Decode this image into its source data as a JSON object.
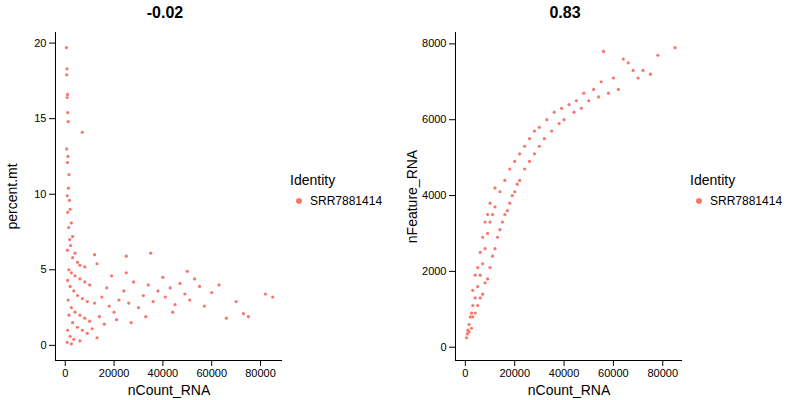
{
  "chart_data": [
    {
      "type": "scatter",
      "title": "-0.02",
      "x_label": "nCount_RNA",
      "y_label": "percent.mt",
      "legend": "right",
      "legend_title": "Identity",
      "xlim": [
        -4000,
        89000
      ],
      "xticks": [
        0,
        20000,
        40000,
        60000,
        80000
      ],
      "ylim": [
        -1,
        20.7
      ],
      "yticks": [
        0,
        5,
        10,
        15,
        20
      ],
      "series": [
        {
          "name": "SRR7881414",
          "color": "#F8766D",
          "x": [
            500,
            700,
            600,
            900,
            800,
            1000,
            1200,
            600,
            1100,
            900,
            7000,
            1500,
            1300,
            800,
            1700,
            2000,
            1000,
            2500,
            1400,
            3000,
            1800,
            2200,
            900,
            4000,
            3000,
            5000,
            6000,
            8000,
            12000,
            13000,
            25000,
            35000,
            1500,
            2500,
            4000,
            6000,
            8000,
            10000,
            1000,
            2000,
            3500,
            5000,
            7000,
            9000,
            12000,
            15000,
            18000,
            1200,
            2500,
            4000,
            6000,
            8000,
            10000,
            14000,
            1500,
            3000,
            5000,
            7000,
            9000,
            11000,
            1000,
            2000,
            3500,
            6000,
            800,
            2500,
            13000,
            16000,
            20000,
            22000,
            24000,
            26000,
            28000,
            30000,
            32000,
            34000,
            36000,
            38000,
            40000,
            41000,
            43000,
            45000,
            47000,
            49000,
            51000,
            53000,
            55000,
            57000,
            60000,
            63000,
            66000,
            70000,
            73000,
            75000,
            82000,
            85000,
            19000,
            17000,
            21000,
            27000,
            33000,
            44000,
            50000,
            25000
          ],
          "values": [
            19.7,
            18.3,
            17.9,
            16.6,
            16.4,
            15.4,
            14.8,
            13.0,
            12.5,
            12.1,
            14.1,
            11.3,
            10.4,
            9.9,
            9.6,
            9.0,
            8.8,
            8.1,
            7.8,
            7.2,
            7.0,
            6.6,
            6.3,
            6.1,
            5.8,
            5.5,
            5.3,
            5.2,
            6.0,
            5.4,
            5.9,
            6.1,
            5.0,
            4.8,
            4.6,
            4.4,
            4.2,
            4.0,
            4.3,
            3.9,
            3.6,
            3.3,
            3.1,
            2.9,
            2.8,
            3.2,
            2.6,
            3.0,
            2.5,
            2.2,
            2.0,
            1.8,
            1.6,
            1.9,
            2.0,
            1.5,
            1.2,
            1.0,
            0.8,
            1.1,
            1.0,
            0.6,
            0.4,
            0.3,
            0.2,
            0.1,
            0.5,
            1.4,
            2.2,
            3.0,
            3.6,
            2.8,
            4.2,
            2.5,
            3.3,
            4.0,
            2.9,
            3.6,
            4.5,
            3.2,
            3.8,
            2.7,
            4.1,
            3.4,
            3.0,
            4.4,
            3.9,
            2.6,
            3.5,
            4.0,
            1.8,
            2.9,
            2.1,
            1.9,
            3.4,
            3.2,
            4.6,
            3.8,
            1.7,
            1.5,
            1.9,
            2.2,
            4.9,
            4.8
          ]
        }
      ]
    },
    {
      "type": "scatter",
      "title": "0.83",
      "x_label": "nCount_RNA",
      "y_label": "nFeature_RNA",
      "legend": "right",
      "legend_title": "Identity",
      "xlim": [
        -4000,
        88000
      ],
      "xticks": [
        0,
        20000,
        40000,
        60000,
        80000
      ],
      "ylim": [
        -350,
        8300
      ],
      "yticks": [
        0,
        2000,
        4000,
        6000,
        8000
      ],
      "series": [
        {
          "name": "SRR7881414",
          "color": "#F8766D",
          "x": [
            500,
            800,
            1000,
            1500,
            2000,
            2500,
            3000,
            3000,
            4000,
            4000,
            5000,
            5000,
            6000,
            6000,
            7000,
            7000,
            8000,
            8000,
            9000,
            9000,
            10000,
            10000,
            11000,
            11000,
            12000,
            12000,
            13000,
            14000,
            14000,
            15000,
            16000,
            16000,
            17000,
            18000,
            18000,
            19000,
            20000,
            20000,
            21000,
            22000,
            22000,
            24000,
            24000,
            26000,
            26000,
            28000,
            28000,
            30000,
            30000,
            32000,
            33000,
            35000,
            36000,
            38000,
            39000,
            40000,
            42000,
            44000,
            45000,
            47000,
            48000,
            50000,
            52000,
            54000,
            55000,
            56000,
            58000,
            60000,
            62000,
            64000,
            66000,
            68000,
            70000,
            72000,
            75000,
            78000,
            85000,
            5000,
            7000,
            9000,
            12000,
            3000,
            4000,
            1500,
            2500,
            6000,
            8000,
            10000
          ],
          "values": [
            250,
            350,
            450,
            600,
            800,
            900,
            1100,
            800,
            1300,
            900,
            1600,
            1100,
            1900,
            1300,
            2200,
            1400,
            2600,
            1700,
            3000,
            1800,
            3300,
            2100,
            3500,
            2400,
            3700,
            2600,
            2900,
            3100,
            4100,
            3300,
            4400,
            3500,
            3600,
            4700,
            3800,
            4000,
            4900,
            4100,
            4300,
            5100,
            4400,
            5300,
            4700,
            5500,
            4900,
            5700,
            5100,
            5800,
            5300,
            5500,
            6000,
            5700,
            6200,
            5900,
            6300,
            6000,
            6400,
            6200,
            6500,
            6300,
            6700,
            6500,
            6800,
            6600,
            7000,
            7800,
            6700,
            7100,
            6800,
            7600,
            7500,
            7300,
            7100,
            7300,
            7200,
            7700,
            7900,
            2100,
            2900,
            3500,
            4200,
            1500,
            1900,
            400,
            500,
            2500,
            3300,
            3800
          ]
        }
      ]
    }
  ]
}
